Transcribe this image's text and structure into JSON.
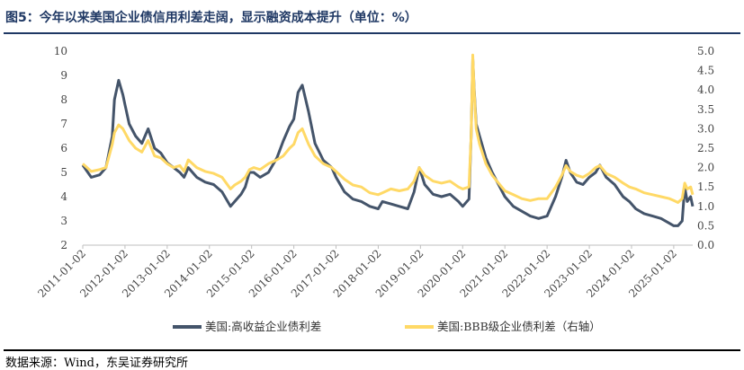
{
  "header": {
    "title": "图5：今年以来美国企业债信用利差走阔，显示融资成本提升（单位：%）"
  },
  "footer": {
    "source": "数据来源：Wind，东吴证券研究所"
  },
  "colors": {
    "title": "#1f3864",
    "series_hy": "#44546a",
    "series_bbb": "#ffd966",
    "axis": "#bfbfbf"
  },
  "chart_data": {
    "type": "line",
    "x_tick_labels": [
      "2011-01-02",
      "2012-01-02",
      "2013-01-02",
      "2014-01-02",
      "2015-01-02",
      "2016-01-02",
      "2017-01-02",
      "2018-01-02",
      "2019-01-02",
      "2020-01-02",
      "2021-01-02",
      "2022-01-02",
      "2023-01-02",
      "2024-01-02",
      "2025-01-02"
    ],
    "y_left": {
      "lim": [
        2,
        10
      ],
      "ticks": [
        "2",
        "3",
        "4",
        "5",
        "6",
        "7",
        "8",
        "9",
        "10"
      ]
    },
    "y_right": {
      "lim": [
        0,
        5
      ],
      "ticks": [
        "0.0",
        "0.5",
        "1.0",
        "1.5",
        "2.0",
        "2.5",
        "3.0",
        "3.5",
        "4.0",
        "4.5",
        "5.0"
      ]
    },
    "legend_position": "bottom",
    "grid": false,
    "series": [
      {
        "name": "美国:高收益企业债利差",
        "axis": "left",
        "x": [
          2011.0,
          2011.2,
          2011.4,
          2011.55,
          2011.7,
          2011.75,
          2011.85,
          2011.95,
          2012.0,
          2012.1,
          2012.25,
          2012.4,
          2012.55,
          2012.7,
          2012.85,
          2013.0,
          2013.15,
          2013.3,
          2013.4,
          2013.5,
          2013.7,
          2013.9,
          2014.1,
          2014.3,
          2014.5,
          2014.6,
          2014.75,
          2014.85,
          2014.95,
          2015.05,
          2015.2,
          2015.4,
          2015.6,
          2015.75,
          2015.9,
          2016.0,
          2016.1,
          2016.2,
          2016.35,
          2016.5,
          2016.7,
          2016.9,
          2017.0,
          2017.2,
          2017.4,
          2017.6,
          2017.8,
          2018.0,
          2018.1,
          2018.3,
          2018.5,
          2018.7,
          2018.85,
          2018.97,
          2019.1,
          2019.3,
          2019.5,
          2019.7,
          2019.9,
          2020.0,
          2020.15,
          2020.2,
          2020.24,
          2020.27,
          2020.32,
          2020.4,
          2020.55,
          2020.7,
          2020.85,
          2021.0,
          2021.2,
          2021.4,
          2021.6,
          2021.8,
          2022.0,
          2022.2,
          2022.35,
          2022.45,
          2022.55,
          2022.7,
          2022.85,
          2023.0,
          2023.15,
          2023.25,
          2023.4,
          2023.6,
          2023.8,
          2023.95,
          2024.1,
          2024.3,
          2024.5,
          2024.7,
          2024.9,
          2025.0,
          2025.1,
          2025.2,
          2025.26,
          2025.32,
          2025.4,
          2025.45
        ],
        "values": [
          5.3,
          4.8,
          4.9,
          5.2,
          6.5,
          8.0,
          8.8,
          8.2,
          7.8,
          7.0,
          6.5,
          6.2,
          6.8,
          6.0,
          5.8,
          5.4,
          5.2,
          5.0,
          4.8,
          5.2,
          4.8,
          4.6,
          4.5,
          4.2,
          3.6,
          3.8,
          4.1,
          4.4,
          5.0,
          5.0,
          4.8,
          5.0,
          5.6,
          6.3,
          6.9,
          7.2,
          8.3,
          8.6,
          7.5,
          6.2,
          5.5,
          5.2,
          4.8,
          4.2,
          3.9,
          3.8,
          3.6,
          3.5,
          3.8,
          3.7,
          3.6,
          3.5,
          4.2,
          5.2,
          4.5,
          4.1,
          4.0,
          4.1,
          3.8,
          3.6,
          3.9,
          6.5,
          9.7,
          8.5,
          7.0,
          6.5,
          5.6,
          5.0,
          4.5,
          4.0,
          3.6,
          3.4,
          3.2,
          3.1,
          3.2,
          4.0,
          4.8,
          5.5,
          5.0,
          4.6,
          4.5,
          4.8,
          5.0,
          5.3,
          4.8,
          4.5,
          4.0,
          3.8,
          3.5,
          3.3,
          3.2,
          3.1,
          2.9,
          2.8,
          2.8,
          3.0,
          4.4,
          3.8,
          4.0,
          3.6
        ]
      },
      {
        "name": "美国:BBB级企业债利差（右轴）",
        "axis": "right",
        "x": [
          2011.0,
          2011.2,
          2011.4,
          2011.55,
          2011.7,
          2011.75,
          2011.85,
          2011.95,
          2012.0,
          2012.1,
          2012.25,
          2012.4,
          2012.55,
          2012.7,
          2012.85,
          2013.0,
          2013.15,
          2013.3,
          2013.4,
          2013.5,
          2013.7,
          2013.9,
          2014.1,
          2014.3,
          2014.5,
          2014.6,
          2014.75,
          2014.85,
          2014.95,
          2015.05,
          2015.2,
          2015.4,
          2015.6,
          2015.75,
          2015.9,
          2016.0,
          2016.1,
          2016.2,
          2016.35,
          2016.5,
          2016.7,
          2016.9,
          2017.0,
          2017.2,
          2017.4,
          2017.6,
          2017.8,
          2018.0,
          2018.1,
          2018.3,
          2018.5,
          2018.7,
          2018.85,
          2018.97,
          2019.1,
          2019.3,
          2019.5,
          2019.7,
          2019.9,
          2020.0,
          2020.15,
          2020.2,
          2020.24,
          2020.27,
          2020.32,
          2020.4,
          2020.55,
          2020.7,
          2020.85,
          2021.0,
          2021.2,
          2021.4,
          2021.6,
          2021.8,
          2022.0,
          2022.2,
          2022.35,
          2022.45,
          2022.55,
          2022.7,
          2022.85,
          2023.0,
          2023.15,
          2023.25,
          2023.4,
          2023.6,
          2023.8,
          2023.95,
          2024.1,
          2024.3,
          2024.5,
          2024.7,
          2024.9,
          2025.0,
          2025.1,
          2025.2,
          2025.26,
          2025.32,
          2025.4,
          2025.45
        ],
        "values": [
          2.1,
          1.9,
          1.95,
          2.0,
          2.6,
          2.9,
          3.1,
          3.0,
          2.9,
          2.7,
          2.5,
          2.4,
          2.7,
          2.3,
          2.25,
          2.1,
          2.0,
          2.05,
          1.9,
          2.2,
          2.0,
          1.9,
          1.85,
          1.75,
          1.45,
          1.55,
          1.65,
          1.75,
          1.95,
          2.0,
          1.95,
          2.1,
          2.2,
          2.3,
          2.5,
          2.6,
          2.9,
          3.0,
          2.6,
          2.3,
          2.1,
          2.0,
          1.9,
          1.7,
          1.55,
          1.5,
          1.35,
          1.3,
          1.35,
          1.45,
          1.4,
          1.45,
          1.65,
          2.0,
          1.8,
          1.65,
          1.6,
          1.65,
          1.5,
          1.45,
          1.5,
          2.8,
          4.9,
          4.0,
          3.0,
          2.6,
          2.1,
          1.8,
          1.6,
          1.4,
          1.3,
          1.2,
          1.15,
          1.2,
          1.2,
          1.5,
          1.8,
          2.05,
          1.9,
          1.8,
          1.75,
          1.85,
          2.0,
          2.05,
          1.85,
          1.75,
          1.6,
          1.5,
          1.45,
          1.35,
          1.3,
          1.25,
          1.2,
          1.15,
          1.1,
          1.2,
          1.6,
          1.45,
          1.5,
          1.3
        ]
      }
    ]
  }
}
